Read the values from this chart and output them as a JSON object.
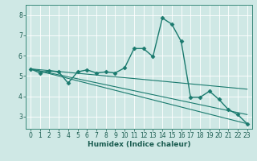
{
  "xlabel": "Humidex (Indice chaleur)",
  "ylabel": "",
  "xlim": [
    -0.5,
    23.5
  ],
  "ylim": [
    2.4,
    8.5
  ],
  "xticks": [
    0,
    1,
    2,
    3,
    4,
    5,
    6,
    7,
    8,
    9,
    10,
    11,
    12,
    13,
    14,
    15,
    16,
    17,
    18,
    19,
    20,
    21,
    22,
    23
  ],
  "yticks": [
    3,
    4,
    5,
    6,
    7,
    8
  ],
  "bg_color": "#cfe8e5",
  "grid_color": "#ffffff",
  "line_color": "#1a7a6e",
  "lines": [
    {
      "x": [
        0,
        1,
        2,
        3,
        4,
        5,
        6,
        7,
        8,
        9,
        10,
        11,
        12,
        13,
        14,
        15,
        16,
        17,
        18,
        19,
        20,
        21,
        22,
        23
      ],
      "y": [
        5.35,
        5.15,
        5.25,
        5.2,
        4.65,
        5.2,
        5.3,
        5.15,
        5.2,
        5.15,
        5.4,
        6.35,
        6.35,
        5.95,
        7.85,
        7.55,
        6.7,
        3.95,
        3.95,
        4.25,
        3.85,
        3.35,
        3.1,
        2.65
      ],
      "marker": "D",
      "markersize": 2.5,
      "linewidth": 1.0,
      "color": "#1a7a6e"
    },
    {
      "x": [
        0,
        23
      ],
      "y": [
        5.35,
        2.65
      ],
      "marker": null,
      "markersize": 0,
      "linewidth": 0.8,
      "color": "#1a7a6e"
    },
    {
      "x": [
        0,
        23
      ],
      "y": [
        5.35,
        3.1
      ],
      "marker": null,
      "markersize": 0,
      "linewidth": 0.8,
      "color": "#1a7a6e"
    },
    {
      "x": [
        0,
        23
      ],
      "y": [
        5.35,
        4.35
      ],
      "marker": null,
      "markersize": 0,
      "linewidth": 0.8,
      "color": "#1a7a6e"
    }
  ]
}
